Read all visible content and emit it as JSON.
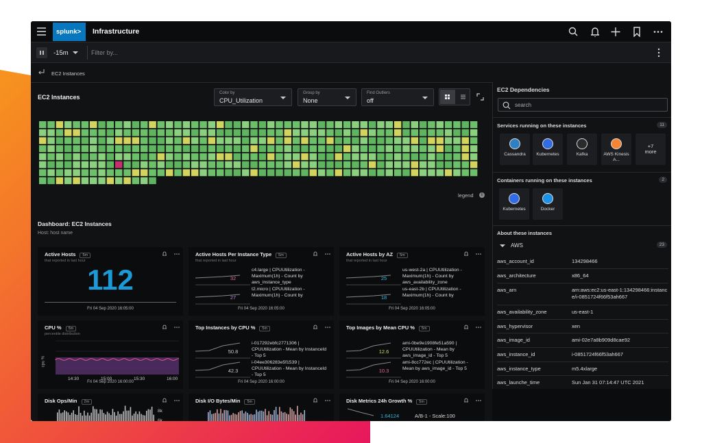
{
  "header": {
    "brand": "splunk>",
    "title": "Infrastructure"
  },
  "toolbar": {
    "time": "-15m",
    "filter": "Filter by..."
  },
  "breadcrumb": "EC2 Instances",
  "map": {
    "title": "EC2 Instances",
    "controls": [
      {
        "label": "Color by",
        "value": "CPU_Utilization"
      },
      {
        "label": "Group by",
        "value": "None"
      },
      {
        "label": "Find Outliers",
        "value": "off"
      }
    ],
    "legend": "legend"
  },
  "dashboard": {
    "title": "Dashboard: EC2 Instances",
    "subtitle": "Host: host name",
    "cards": [
      {
        "title": "Active Hosts",
        "badge": "5m",
        "subtitle": "that reported in last hour",
        "value": 112,
        "footer": "Fri 04 Sep 2020 16:05:00"
      },
      {
        "title": "Active Hosts Per Instance Type",
        "badge": "5m",
        "subtitle": "that reported in last hour",
        "rows": [
          {
            "value": 32,
            "color": "#e86a9a",
            "label": "c4.large | CPUUtilization - Maximum(1h) - Count by aws_instance_type"
          },
          {
            "value": 27,
            "color": "#b88cd8",
            "label": "t2.micro | CPUUtilization - Maximum(1h) - Count by"
          }
        ],
        "footer": "Fri 04 Sep 2020 16:05:00"
      },
      {
        "title": "Active Hosts by AZ",
        "badge": "5m",
        "subtitle": "that reported in last hour",
        "rows": [
          {
            "value": 25,
            "color": "#35b8e0",
            "label": "us-west-2a | CPUUtilization - Maximum(1h) - Count by aws_availability_zone"
          },
          {
            "value": 18,
            "color": "#35b8e0",
            "label": "us-east-2b | CPUUtilization - Maximum(1h) - Count by"
          }
        ],
        "footer": "Fri 04 Sep 2020 16:05:00"
      },
      {
        "title": "CPU %",
        "badge": "5m",
        "subtitle": "percentile distribution",
        "axis": "cpu %",
        "ticks": [
          "14:30",
          "15:00",
          "15:30",
          "16:00"
        ],
        "footer": "Fri 04 Sep 2020 16:00:00"
      },
      {
        "title": "Top Instances by CPU %",
        "badge": "5m",
        "rows": [
          {
            "value": 50.8,
            "color": "#c9c9c9",
            "label": "i-017292ebfc2771306 | CPUUtilization - Mean by InstanceId - Top 5"
          },
          {
            "value": 42.3,
            "color": "#c9c9c9",
            "label": "i-04ee306283e5f1539 | CPUUtilization - Mean by InstanceId - Top 5"
          }
        ],
        "footer": "Fri 04 Sep 2020 16:00:00"
      },
      {
        "title": "Top Images by Mean CPU %",
        "badge": "5m",
        "rows": [
          {
            "value": 12.6,
            "color": "#d6d65a",
            "label": "ami-0be9e1908fe51a590 | CPUUtilization - Mean by aws_image_id - Top 5"
          },
          {
            "value": 10.3,
            "color": "#e86a9a",
            "label": "ami-8cc772ec | CPUUtilization - Mean by aws_image_id - Top 5"
          }
        ],
        "footer": "Fri 04 Sep 2020 16:00:00"
      },
      {
        "title": "Disk Ops/Min",
        "badge": "2m",
        "bars": [
          "8k",
          "6k"
        ]
      },
      {
        "title": "Disk I/O Bytes/Min",
        "badge": "5m",
        "bars": []
      },
      {
        "title": "Disk Metrics 24h Growth %",
        "badge": "5m",
        "growth": 1.64124,
        "growth_label": "A/B-1 - Scale:100"
      }
    ]
  },
  "dependencies": {
    "title": "EC2 Dependencies",
    "search": "search",
    "services": {
      "title": "Services running on these instances",
      "count": 11,
      "items": [
        "Cassandra",
        "Kubernetes",
        "Kafka",
        "AWS Kinesis A..."
      ],
      "more": "+7 more"
    },
    "containers": {
      "title": "Containers running on these instances",
      "count": 2,
      "items": [
        "Kubernetes",
        "Docker"
      ]
    },
    "about": {
      "title": "About these instances",
      "group": "AWS",
      "count": 23,
      "properties": [
        {
          "key": "aws_account_id",
          "value": "134298466"
        },
        {
          "key": "aws_architecture",
          "value": "x86_64"
        },
        {
          "key": "aws_arn",
          "value": "arn:aws:ec2:us-east-1:134298466:instance/i-0851724f66f53ah667"
        },
        {
          "key": "aws_availability_zone",
          "value": "us-east-1"
        },
        {
          "key": "aws_hypervisor",
          "value": "xen"
        },
        {
          "key": "aws_image_id",
          "value": "ami-02e7a8b909d8cae92"
        },
        {
          "key": "aws_instance_id",
          "value": "i-0851724f66f53ah667"
        },
        {
          "key": "aws_instance_type",
          "value": "m5.4xlarge"
        },
        {
          "key": "aws_launche_time",
          "value": "Sun Jan 31 07:14:47 UTC 2021"
        }
      ]
    }
  }
}
